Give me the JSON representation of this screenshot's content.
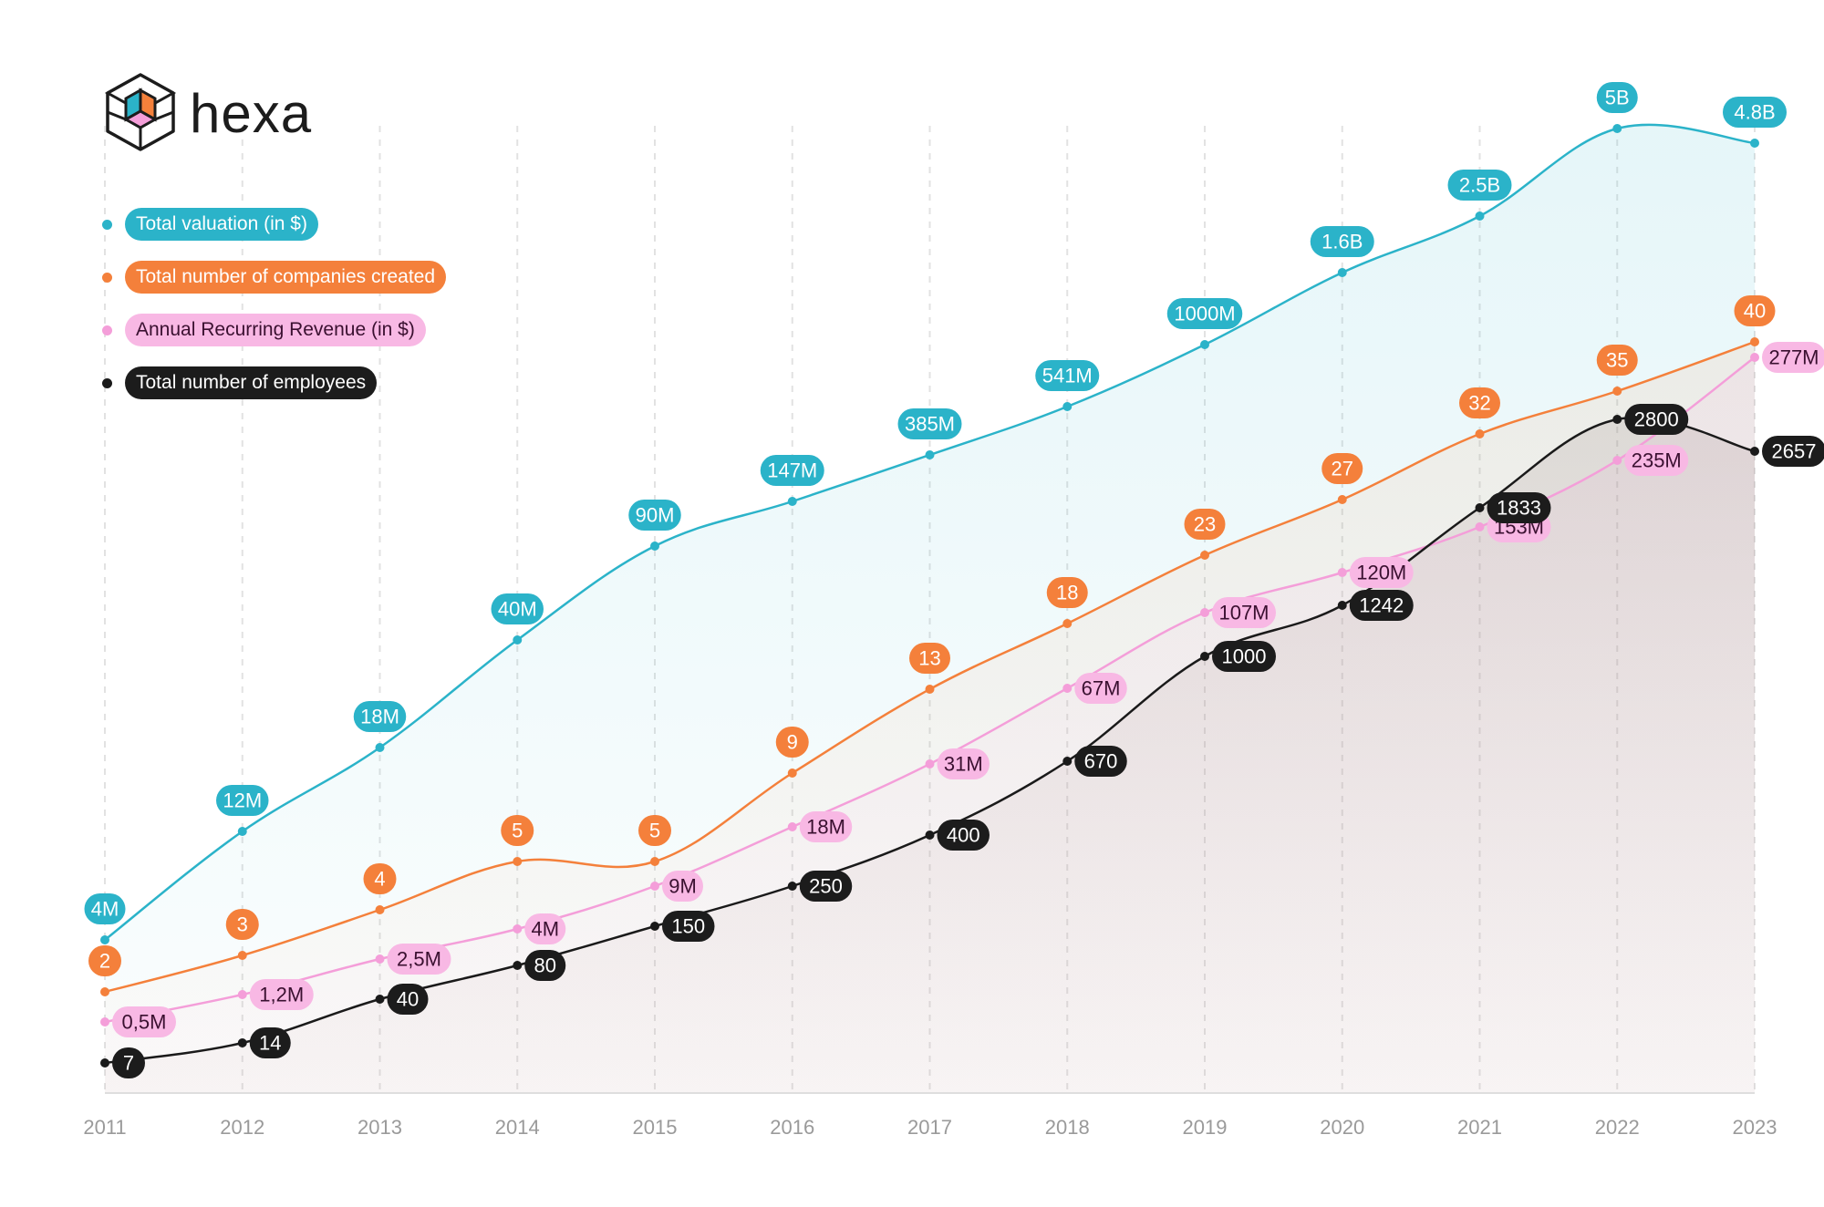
{
  "logo": {
    "text": "hexa",
    "icon": "hexa-cube-logo-icon"
  },
  "chart_data": {
    "type": "line",
    "title": "",
    "xlabel": "",
    "ylabel": "",
    "categories": [
      "2011",
      "2012",
      "2013",
      "2014",
      "2015",
      "2016",
      "2017",
      "2018",
      "2019",
      "2020",
      "2021",
      "2022",
      "2023"
    ],
    "grid": "vertical dashed",
    "legend_position": "top-left",
    "series": [
      {
        "key": "valuation",
        "name": "Total valuation (in $)",
        "color": "#2bb3c9",
        "label_bg": "#2bb3c9",
        "label_fg": "#ffffff",
        "label_placement": "above",
        "values_musd": [
          4,
          12,
          18,
          40,
          90,
          147,
          385,
          541,
          1000,
          1600,
          2500,
          5000,
          4800
        ],
        "labels": [
          "4M",
          "12M",
          "18M",
          "40M",
          "90M",
          "147M",
          "385M",
          "541M",
          "1000M",
          "1.6B",
          "2.5B",
          "5B",
          "4.8B"
        ]
      },
      {
        "key": "companies",
        "name": "Total number of companies created",
        "color": "#f4803b",
        "label_bg": "#f4803b",
        "label_fg": "#ffffff",
        "label_placement": "above",
        "values": [
          2,
          3,
          4,
          5,
          5,
          9,
          13,
          18,
          23,
          27,
          32,
          35,
          40
        ],
        "labels": [
          "2",
          "3",
          "4",
          "5",
          "5",
          "9",
          "13",
          "18",
          "23",
          "27",
          "32",
          "35",
          "40"
        ]
      },
      {
        "key": "arr",
        "name": "Annual Recurring Revenue (in $)",
        "color": "#f49ed9",
        "label_bg": "#f8b8e4",
        "label_fg": "#3a1030",
        "label_placement": "right",
        "values_musd": [
          0.5,
          1.2,
          2.5,
          4,
          9,
          18,
          31,
          67,
          107,
          120,
          153,
          235,
          277
        ],
        "labels": [
          "0,5M",
          "1,2M",
          "2,5M",
          "4M",
          "9M",
          "18M",
          "31M",
          "67M",
          "107M",
          "120M",
          "153M",
          "235M",
          "277M"
        ]
      },
      {
        "key": "employees",
        "name": "Total number of employees",
        "color": "#1a1a1a",
        "label_bg": "#1c1c1c",
        "label_fg": "#ffffff",
        "label_placement": "right",
        "values": [
          7,
          14,
          40,
          80,
          150,
          250,
          400,
          670,
          1000,
          1242,
          1833,
          2800,
          2657
        ],
        "labels": [
          "7",
          "14",
          "40",
          "80",
          "150",
          "250",
          "400",
          "670",
          "1000",
          "1242",
          "1833",
          "2800",
          "2657"
        ]
      }
    ]
  }
}
